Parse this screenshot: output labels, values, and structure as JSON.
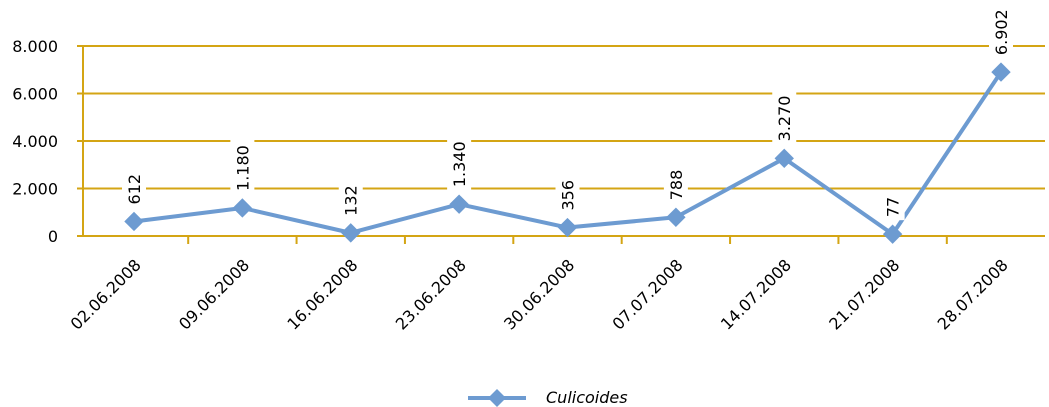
{
  "chart_data": {
    "type": "line",
    "categories": [
      "02.06.2008",
      "09.06.2008",
      "16.06.2008",
      "23.06.2008",
      "30.06.2008",
      "07.07.2008",
      "14.07.2008",
      "21.07.2008",
      "28.07.2008"
    ],
    "series": [
      {
        "name": "Culicoides",
        "values": [
          612,
          1180,
          132,
          1340,
          356,
          788,
          3270,
          77,
          6902
        ],
        "data_labels": [
          "612",
          "1.180",
          "132",
          "1.340",
          "356",
          "788",
          "3.270",
          "77",
          "6.902"
        ],
        "color": "#6d9bd1"
      }
    ],
    "y_ticks": [
      0,
      2000,
      4000,
      6000,
      8000
    ],
    "y_tick_labels": [
      "0",
      "2.000",
      "4.000",
      "6.000",
      "8.000"
    ],
    "ylim": [
      0,
      8000
    ],
    "grid": true,
    "grid_color": "#d4a514",
    "legend_position": "bottom"
  }
}
